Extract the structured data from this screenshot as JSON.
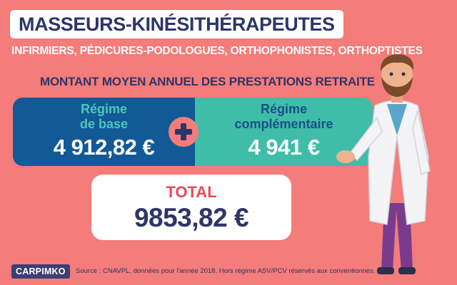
{
  "title": "MASSEURS-KINÉSITHÉRAPEUTES",
  "subtitle": "INFIRMIERS, PÉDICURES-PODOLOGUES, ORTHOPHONISTES, ORTHOPTISTES",
  "heading": "MONTANT MOYEN ANNUEL DES PRESTATIONS RETRAITE",
  "left_panel": {
    "label_line1": "Régime",
    "label_line2": "de base",
    "amount": "4 912,82 €"
  },
  "right_panel": {
    "label_line1": "Régime",
    "label_line2": "complémentaire",
    "amount": "4 941 €"
  },
  "total": {
    "label": "TOTAL",
    "amount": "9853,82 €"
  },
  "logo": "CARPIMKO",
  "source": "Source : CNAVPL, données pour l'année 2018. Hors régime ASV/PCV réservés aux conventionnés.",
  "colors": {
    "background": "#f47c7a",
    "navy": "#2e3568",
    "blue_panel": "#115a96",
    "teal_panel": "#3fbda8",
    "total_red": "#e84a55"
  },
  "icons": [
    "plus-icon",
    "doctor-illustration"
  ]
}
